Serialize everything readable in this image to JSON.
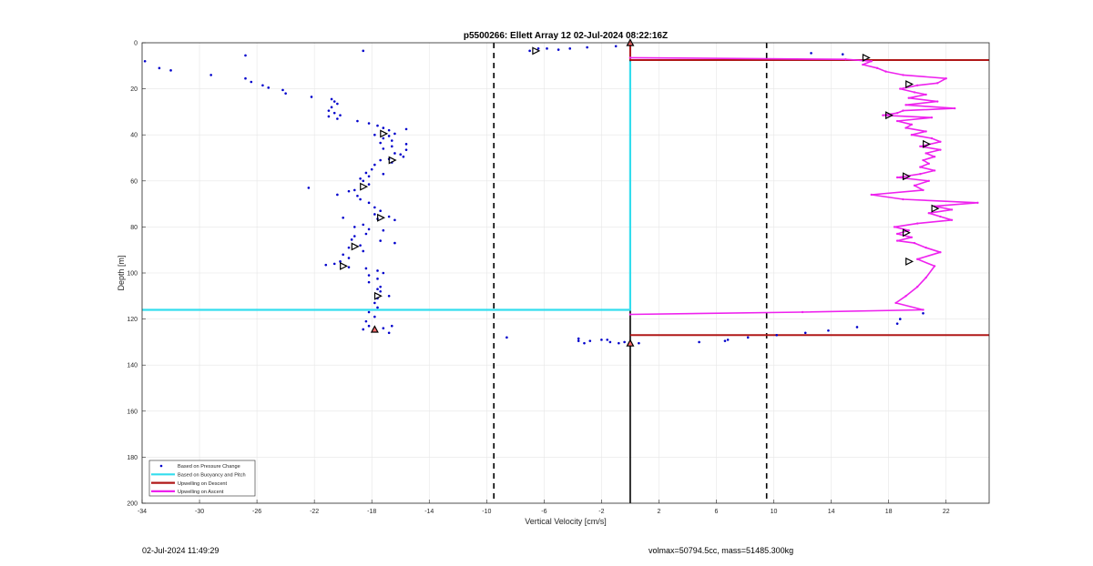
{
  "footer": {
    "timestamp": "02-Jul-2024 11:49:29",
    "volmax": "volmax=50794.5cc, mass=51485.300kg"
  },
  "colors": {
    "pressure": "#0000cc",
    "buoyancy": "#33ddee",
    "descent": "#b01818",
    "ascent": "#ee22ee",
    "threshold": "#000000"
  },
  "chart_data": {
    "type": "line",
    "title": "p5500266: Ellett Array 12 02-Jul-2024 08:22:16Z",
    "xlabel": "Vertical Velocity [cm/s]",
    "ylabel": "Depth [m]",
    "xlim": [
      -34,
      25
    ],
    "ylim": [
      0,
      200
    ],
    "y_reversed": true,
    "grid": true,
    "xticks": [
      -34,
      -30,
      -26,
      -22,
      -18,
      -14,
      -10,
      -6,
      -2,
      2,
      6,
      10,
      14,
      18,
      22
    ],
    "yticks": [
      0,
      20,
      40,
      60,
      80,
      100,
      120,
      140,
      160,
      180,
      200
    ],
    "thresholds": [
      -9.5,
      9.5
    ],
    "legend": {
      "position": "bottom-left",
      "entries": [
        "Based on Pressure Change",
        "Based on Buoyancy and Pitch",
        "Upwelling on Descent",
        "Upwelling on Ascent"
      ]
    },
    "series": [
      {
        "name": "Based on Pressure Change",
        "style": "points",
        "points": [
          [
            -33.8,
            8
          ],
          [
            -32.8,
            11
          ],
          [
            -32,
            12
          ],
          [
            -29.2,
            14
          ],
          [
            -26.8,
            5.5
          ],
          [
            -26.8,
            15.5
          ],
          [
            -26.4,
            17
          ],
          [
            -25.6,
            18.5
          ],
          [
            -25.2,
            19.5
          ],
          [
            -24.2,
            20.5
          ],
          [
            -24,
            22
          ],
          [
            -22.2,
            23.5
          ],
          [
            -18.6,
            3.5
          ],
          [
            -20.8,
            24.5
          ],
          [
            -20.6,
            25.5
          ],
          [
            -20.4,
            26.5
          ],
          [
            -20.8,
            28
          ],
          [
            -21,
            29.5
          ],
          [
            -20.6,
            30.5
          ],
          [
            -20.2,
            31.5
          ],
          [
            -21,
            32
          ],
          [
            -20.4,
            33
          ],
          [
            -19,
            34
          ],
          [
            -18.2,
            35
          ],
          [
            -17.6,
            36
          ],
          [
            -17.2,
            37
          ],
          [
            -16.8,
            38
          ],
          [
            -15.6,
            37.5
          ],
          [
            -16.4,
            39.5
          ],
          [
            -16.8,
            40.5
          ],
          [
            -17.8,
            40
          ],
          [
            -17.2,
            41.5
          ],
          [
            -16.6,
            42.5
          ],
          [
            -17.4,
            43.5
          ],
          [
            -15.6,
            44
          ],
          [
            -16.6,
            45
          ],
          [
            -17.2,
            46
          ],
          [
            -15.6,
            46.5
          ],
          [
            -16.4,
            48
          ],
          [
            -16,
            48.5
          ],
          [
            -15.8,
            49.5
          ],
          [
            -16.8,
            50.5
          ],
          [
            -17.4,
            51
          ],
          [
            -16.6,
            52
          ],
          [
            -17.8,
            53
          ],
          [
            -18,
            55
          ],
          [
            -18.4,
            56.5
          ],
          [
            -17.2,
            57
          ],
          [
            -18.2,
            58
          ],
          [
            -18.8,
            59
          ],
          [
            -18.6,
            60
          ],
          [
            -18.2,
            61.5
          ],
          [
            -22.4,
            63
          ],
          [
            -19.2,
            64
          ],
          [
            -19.6,
            64.5
          ],
          [
            -20.4,
            66
          ],
          [
            -19,
            66.5
          ],
          [
            -18.8,
            68
          ],
          [
            -18.2,
            69.5
          ],
          [
            -17.8,
            71.5
          ],
          [
            -17.4,
            73
          ],
          [
            -17.8,
            74.5
          ],
          [
            -16.8,
            75.5
          ],
          [
            -17.6,
            76.5
          ],
          [
            -16.4,
            77
          ],
          [
            -20,
            76
          ],
          [
            -18.6,
            79
          ],
          [
            -19.2,
            80
          ],
          [
            -18.2,
            81
          ],
          [
            -17.2,
            81.5
          ],
          [
            -18.4,
            83
          ],
          [
            -19.2,
            84
          ],
          [
            -19.4,
            85.5
          ],
          [
            -17.4,
            86
          ],
          [
            -16.4,
            87
          ],
          [
            -18.8,
            88
          ],
          [
            -19.6,
            89
          ],
          [
            -18.6,
            90.5
          ],
          [
            -20,
            92
          ],
          [
            -19.6,
            93.5
          ],
          [
            -20.2,
            95
          ],
          [
            -20.6,
            96
          ],
          [
            -21.2,
            96.5
          ],
          [
            -19.6,
            97.5
          ],
          [
            -18.4,
            98
          ],
          [
            -17.6,
            99
          ],
          [
            -17.2,
            100
          ],
          [
            -18.2,
            101
          ],
          [
            -17.6,
            102.5
          ],
          [
            -18.2,
            104
          ],
          [
            -17.4,
            106
          ],
          [
            -17.6,
            107
          ],
          [
            -17.4,
            108
          ],
          [
            -16.8,
            110
          ],
          [
            -17.6,
            111
          ],
          [
            -17.8,
            113
          ],
          [
            -17.6,
            115
          ],
          [
            -18.2,
            117
          ],
          [
            -17.8,
            119
          ],
          [
            -18.4,
            121
          ],
          [
            -18.2,
            123
          ],
          [
            -16.6,
            123
          ],
          [
            -17.2,
            124
          ],
          [
            -18.6,
            124.5
          ],
          [
            -16.8,
            126
          ],
          [
            -7,
            3.5
          ],
          [
            -6.4,
            2.5
          ],
          [
            -5.8,
            2.5
          ],
          [
            -5,
            3
          ],
          [
            -4.2,
            2.5
          ],
          [
            -3,
            2
          ],
          [
            -1,
            1.5
          ],
          [
            -8.6,
            128
          ],
          [
            -3.6,
            128.5
          ],
          [
            -3.6,
            129.5
          ],
          [
            -3.2,
            130.5
          ],
          [
            -2.8,
            129.5
          ],
          [
            -2,
            129
          ],
          [
            -1.6,
            129
          ],
          [
            -1.4,
            130
          ],
          [
            -0.8,
            130.5
          ],
          [
            -0.4,
            130
          ],
          [
            0.6,
            130.5
          ],
          [
            4.8,
            130
          ],
          [
            6.6,
            129.5
          ],
          [
            6.8,
            129
          ],
          [
            8.2,
            128
          ],
          [
            10.2,
            127
          ],
          [
            12.2,
            126
          ],
          [
            13.8,
            125
          ],
          [
            15.8,
            123.5
          ],
          [
            18.6,
            122
          ],
          [
            18.8,
            120
          ],
          [
            20.4,
            117.5
          ],
          [
            12.6,
            4.5
          ],
          [
            14.8,
            5
          ]
        ]
      },
      {
        "name": "Based on Buoyancy and Pitch",
        "style": "line",
        "points": [
          [
            0,
            8
          ],
          [
            0,
            116
          ],
          [
            -34,
            116
          ]
        ]
      },
      {
        "name": "Upwelling on Descent",
        "style": "line",
        "segments": [
          [
            [
              0,
              0.5
            ],
            [
              0,
              7.5
            ]
          ],
          [
            [
              0,
              7.5
            ],
            [
              25,
              7.5
            ]
          ],
          [
            [
              0,
              127
            ],
            [
              25,
              127
            ]
          ]
        ]
      },
      {
        "name": "Upwelling on Ascent",
        "style": "line",
        "points": [
          [
            0,
            118
          ],
          [
            12,
            117
          ],
          [
            20.4,
            116
          ],
          [
            18.5,
            113
          ],
          [
            19.2,
            110
          ],
          [
            20,
            106
          ],
          [
            20.6,
            102
          ],
          [
            21.2,
            97
          ],
          [
            20,
            94
          ],
          [
            21.6,
            91
          ],
          [
            20.6,
            89
          ],
          [
            19.8,
            87
          ],
          [
            18.6,
            86
          ],
          [
            19.6,
            84.5
          ],
          [
            18.6,
            83
          ],
          [
            19.4,
            81.5
          ],
          [
            18.4,
            80
          ],
          [
            20,
            78.5
          ],
          [
            22.4,
            77
          ],
          [
            21.6,
            75.5
          ],
          [
            20.8,
            74
          ],
          [
            22.4,
            72.5
          ],
          [
            21.2,
            71
          ],
          [
            24.2,
            69.5
          ],
          [
            19,
            68
          ],
          [
            16.8,
            66
          ],
          [
            20.4,
            64
          ],
          [
            19.8,
            62
          ],
          [
            20.8,
            60
          ],
          [
            18.6,
            58.5
          ],
          [
            20.2,
            57
          ],
          [
            21.2,
            55.5
          ],
          [
            20.2,
            54
          ],
          [
            20.8,
            52.5
          ],
          [
            20.4,
            51
          ],
          [
            21.2,
            49.5
          ],
          [
            20.6,
            48
          ],
          [
            21.6,
            46.5
          ],
          [
            20.2,
            45
          ],
          [
            21.6,
            43
          ],
          [
            21,
            41.5
          ],
          [
            19.6,
            40
          ],
          [
            20.6,
            38.5
          ],
          [
            19.2,
            37
          ],
          [
            19.6,
            35.5
          ],
          [
            18.6,
            34
          ],
          [
            21,
            32.5
          ],
          [
            17.6,
            31.5
          ],
          [
            18.6,
            30.5
          ],
          [
            19,
            29.5
          ],
          [
            22.6,
            28.5
          ],
          [
            19.2,
            27
          ],
          [
            21.4,
            25.5
          ],
          [
            19.4,
            24
          ],
          [
            20.6,
            22.5
          ],
          [
            19.8,
            21.5
          ],
          [
            18.8,
            20
          ],
          [
            20,
            18.5
          ],
          [
            21.4,
            17.5
          ],
          [
            22,
            15.5
          ],
          [
            19,
            14
          ],
          [
            17.8,
            12.5
          ],
          [
            17.2,
            11
          ],
          [
            16.2,
            9.5
          ],
          [
            16.8,
            8
          ],
          [
            15,
            7.2
          ],
          [
            0,
            6.5
          ]
        ]
      }
    ],
    "markers": {
      "down": [
        [
          -6.6,
          3.5
        ],
        [
          16.4,
          6.5
        ],
        [
          -17.2,
          39.5
        ],
        [
          -18.6,
          62.5
        ],
        [
          -16.6,
          51
        ],
        [
          -17.4,
          76
        ],
        [
          -19.2,
          88.5
        ],
        [
          -20,
          97
        ],
        [
          -17.6,
          110
        ],
        [
          19.4,
          18
        ],
        [
          18,
          31.5
        ],
        [
          20.6,
          44
        ],
        [
          19.2,
          58
        ],
        [
          21.2,
          72
        ],
        [
          19.2,
          82.5
        ],
        [
          19.4,
          95
        ]
      ],
      "up": [
        [
          0,
          0
        ],
        [
          0,
          130.5
        ],
        [
          -17.8,
          124.5
        ]
      ]
    }
  }
}
